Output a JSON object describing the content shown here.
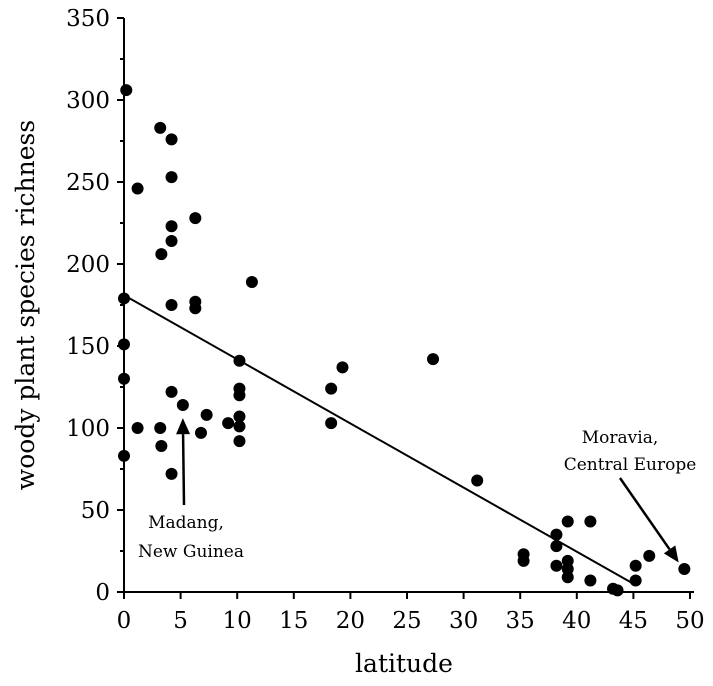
{
  "chart_data": {
    "type": "scatter",
    "title": "",
    "xlabel": "latitude",
    "ylabel": "woody plant species richness",
    "xlim": [
      0,
      50
    ],
    "ylim": [
      0,
      350
    ],
    "xticks": [
      0,
      5,
      10,
      15,
      20,
      25,
      30,
      35,
      40,
      45,
      50
    ],
    "yticks": [
      0,
      50,
      100,
      150,
      200,
      250,
      300,
      350
    ],
    "grid": false,
    "points": [
      {
        "x": 0.2,
        "y": 306
      },
      {
        "x": 0,
        "y": 179
      },
      {
        "x": 0,
        "y": 151
      },
      {
        "x": 0,
        "y": 130
      },
      {
        "x": 0,
        "y": 83
      },
      {
        "x": 1.2,
        "y": 246
      },
      {
        "x": 1.2,
        "y": 100
      },
      {
        "x": 3.2,
        "y": 283
      },
      {
        "x": 4.2,
        "y": 276
      },
      {
        "x": 4.2,
        "y": 253
      },
      {
        "x": 4.2,
        "y": 223
      },
      {
        "x": 4.2,
        "y": 214
      },
      {
        "x": 3.3,
        "y": 206
      },
      {
        "x": 4.2,
        "y": 175
      },
      {
        "x": 6.3,
        "y": 228
      },
      {
        "x": 6.3,
        "y": 177
      },
      {
        "x": 6.3,
        "y": 173
      },
      {
        "x": 3.2,
        "y": 100
      },
      {
        "x": 3.3,
        "y": 89
      },
      {
        "x": 4.2,
        "y": 122
      },
      {
        "x": 5.2,
        "y": 114
      },
      {
        "x": 4.2,
        "y": 72
      },
      {
        "x": 6.8,
        "y": 97
      },
      {
        "x": 7.3,
        "y": 108
      },
      {
        "x": 9.2,
        "y": 103
      },
      {
        "x": 10.2,
        "y": 141
      },
      {
        "x": 10.2,
        "y": 124
      },
      {
        "x": 10.2,
        "y": 120
      },
      {
        "x": 10.2,
        "y": 107
      },
      {
        "x": 10.2,
        "y": 101
      },
      {
        "x": 10.2,
        "y": 92
      },
      {
        "x": 11.3,
        "y": 189
      },
      {
        "x": 18.3,
        "y": 124
      },
      {
        "x": 18.3,
        "y": 103
      },
      {
        "x": 19.3,
        "y": 137
      },
      {
        "x": 27.3,
        "y": 142
      },
      {
        "x": 31.2,
        "y": 68
      },
      {
        "x": 35.3,
        "y": 23
      },
      {
        "x": 35.3,
        "y": 19
      },
      {
        "x": 38.2,
        "y": 35
      },
      {
        "x": 38.2,
        "y": 28
      },
      {
        "x": 38.2,
        "y": 16
      },
      {
        "x": 39.2,
        "y": 43
      },
      {
        "x": 39.2,
        "y": 19
      },
      {
        "x": 39.2,
        "y": 14
      },
      {
        "x": 39.2,
        "y": 9
      },
      {
        "x": 41.2,
        "y": 43
      },
      {
        "x": 41.2,
        "y": 7
      },
      {
        "x": 43.2,
        "y": 2
      },
      {
        "x": 43.6,
        "y": 1
      },
      {
        "x": 45.2,
        "y": 16
      },
      {
        "x": 45.2,
        "y": 7
      },
      {
        "x": 46.4,
        "y": 22
      },
      {
        "x": 49.5,
        "y": 14
      }
    ],
    "trendline": {
      "x": [
        0,
        45
      ],
      "y": [
        181,
        5
      ]
    },
    "annotations": [
      {
        "lines": [
          "Madang,",
          "New Guinea"
        ],
        "arrow_to": {
          "x": 5.2,
          "y": 106
        }
      },
      {
        "lines": [
          "Moravia,",
          "Central Europe"
        ],
        "arrow_to": {
          "x": 49,
          "y": 18
        }
      }
    ]
  }
}
